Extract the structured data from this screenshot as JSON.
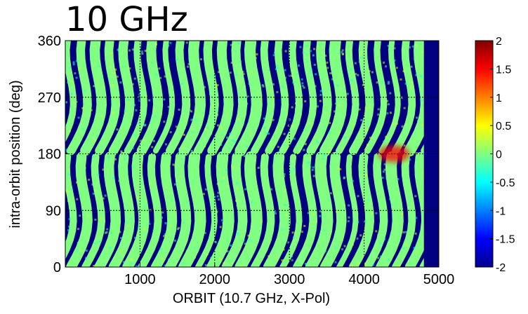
{
  "title": "10 GHz",
  "chart_data": {
    "type": "heatmap",
    "title": "10 GHz",
    "xlabel": "ORBIT (10.7 GHz, X-Pol)",
    "ylabel": "intra-orbit position (deg)",
    "xlim": [
      0,
      5000
    ],
    "ylim": [
      0,
      360
    ],
    "x_ticks": [
      "1000",
      "2000",
      "3000",
      "4000",
      "5000"
    ],
    "y_ticks": [
      "0",
      "90",
      "180",
      "270",
      "360"
    ],
    "grid": true,
    "grid_style": "dotted",
    "colorbar": {
      "colormap": "jet",
      "range": [
        -2,
        2
      ],
      "ticks": [
        "2",
        "1.5",
        "1",
        "0.5",
        "0",
        "-0.5",
        "-1",
        "-1.5",
        "-2"
      ]
    },
    "value_stats": {
      "background_no_data_value": -2,
      "typical_swath_value": 0,
      "typical_swath_range": [
        -0.5,
        0.5
      ],
      "hotspot_value": 1.5,
      "hotspot_location": {
        "x": 4400,
        "y": 180
      }
    },
    "data_end_orbit": 4800
  }
}
